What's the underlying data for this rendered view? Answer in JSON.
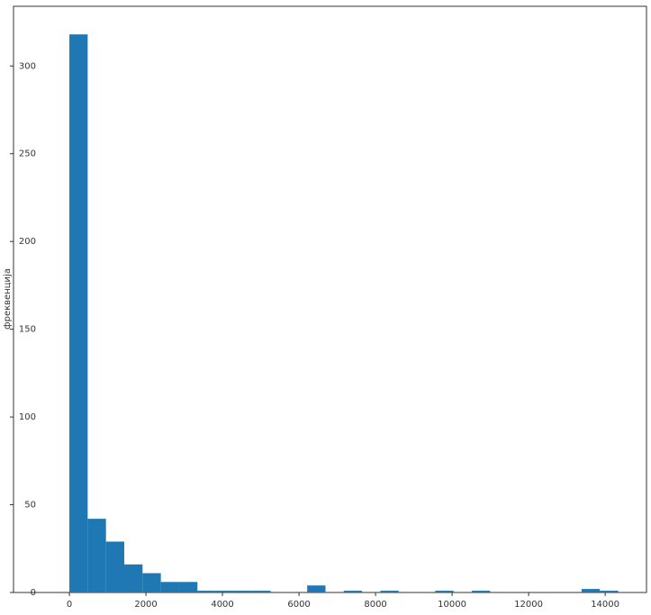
{
  "chart_data": {
    "type": "histogram",
    "y_label": "фреквенција",
    "bins": [
      0,
      478,
      956,
      1434,
      1912,
      2390,
      2868,
      3346,
      3824,
      4302,
      4780,
      5258,
      5736,
      6214,
      6692,
      7170,
      7648,
      8126,
      8604,
      9082,
      9560,
      10038,
      10516,
      10994,
      11472,
      11950,
      12428,
      12906,
      13384,
      13862,
      14340
    ],
    "values": [
      318,
      42,
      29,
      16,
      11,
      6,
      6,
      1,
      1,
      1,
      1,
      0,
      0,
      4,
      0,
      1,
      0,
      1,
      0,
      0,
      1,
      0,
      1,
      0,
      0,
      0,
      0,
      0,
      2,
      1
    ],
    "color": "#1f77b4",
    "xlim": [
      -1460,
      15080
    ],
    "xticks": [
      0,
      2000,
      4000,
      6000,
      8000,
      10000,
      12000,
      14000
    ],
    "ylim": [
      0,
      334
    ],
    "yticks": [
      0,
      50,
      100,
      150,
      200,
      250,
      300
    ],
    "grid": false
  }
}
